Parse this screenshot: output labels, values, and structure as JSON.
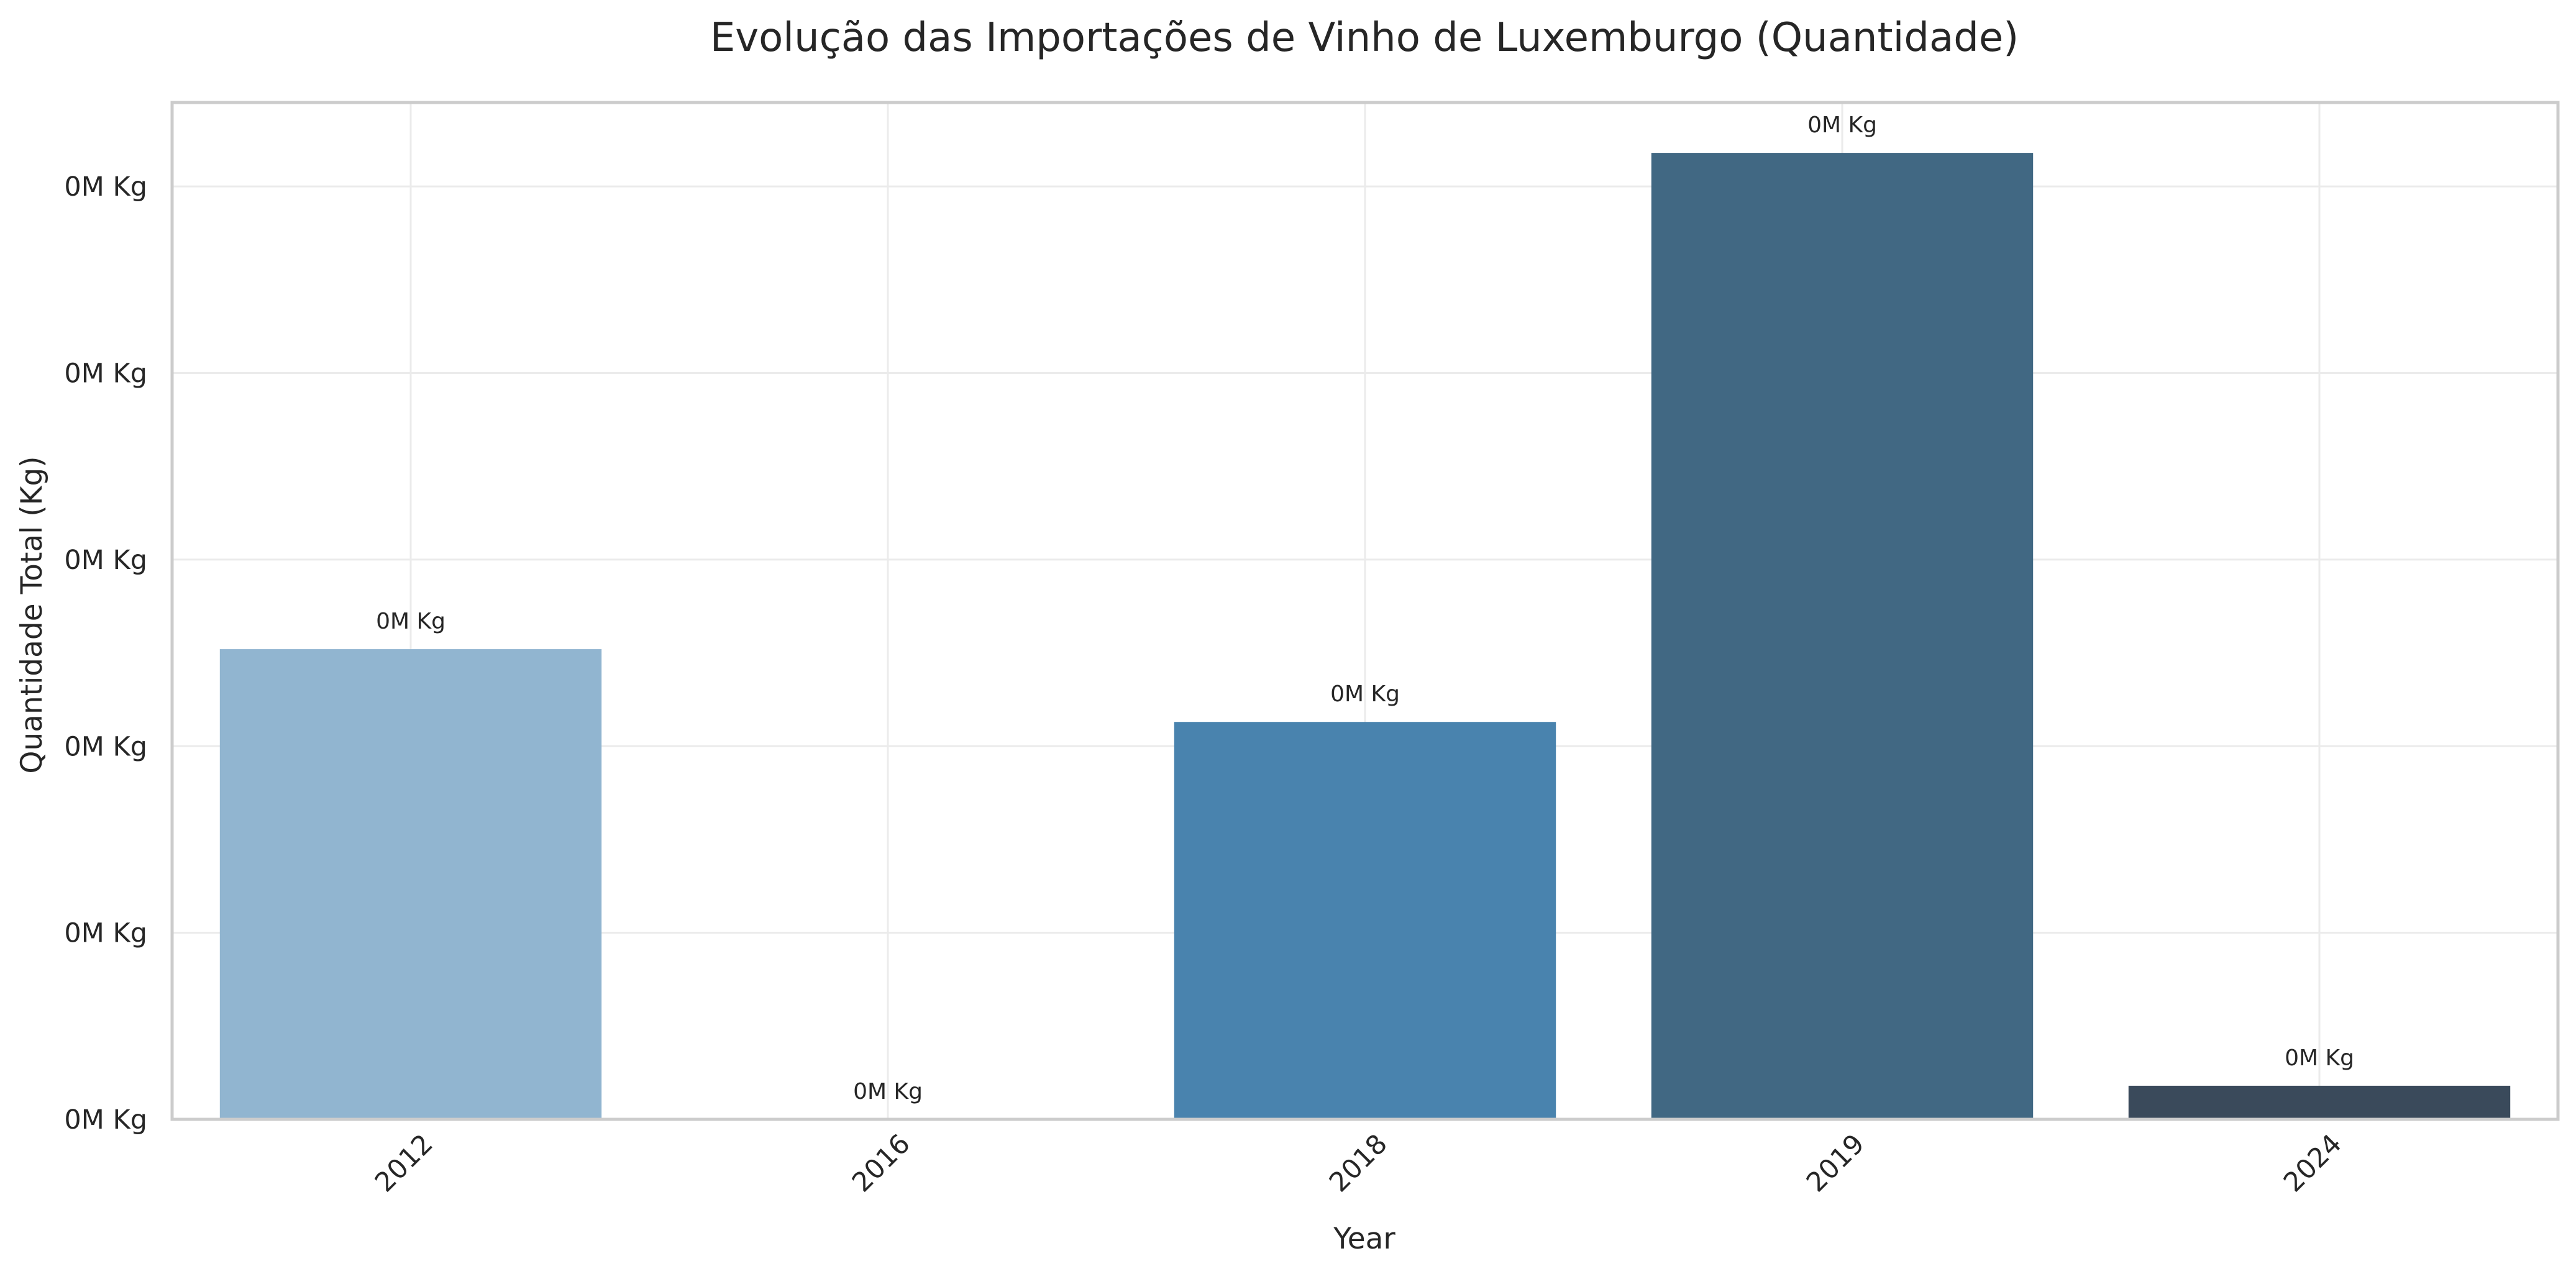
{
  "chart_data": {
    "type": "bar",
    "title": "Evolução das Importações de Vinho de Luxemburgo (Quantidade)",
    "xlabel": "Year",
    "ylabel": "Quantidade Total (Kg)",
    "categories": [
      "2012",
      "2016",
      "2018",
      "2019",
      "2024"
    ],
    "values": [
      2520,
      0,
      2130,
      5180,
      180
    ],
    "bar_labels": [
      "0M Kg",
      "0M Kg",
      "0M Kg",
      "0M Kg",
      "0M Kg"
    ],
    "bar_colors": [
      "#91b5d0",
      "#91b5d0",
      "#4983ae",
      "#416883",
      "#3a4a5b"
    ],
    "y_ticks": [
      0,
      1000,
      2000,
      3000,
      4000,
      5000
    ],
    "y_tick_labels": [
      "0M Kg",
      "0M Kg",
      "0M Kg",
      "0M Kg",
      "0M Kg",
      "0M Kg"
    ],
    "ylim": [
      0,
      5450
    ],
    "grid": true,
    "x_tick_rotation": -45
  }
}
